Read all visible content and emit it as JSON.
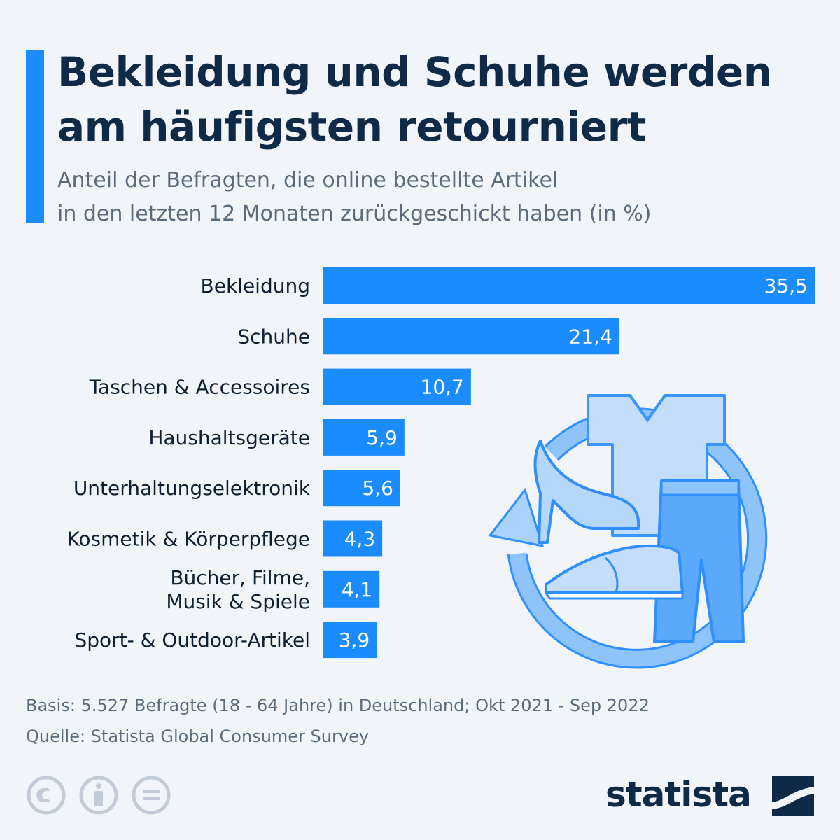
{
  "header": {
    "title_line1": "Bekleidung und Schuhe werden",
    "title_line2": "am häufigsten retourniert",
    "subtitle_line1": "Anteil der Befragten, die online bestellte Artikel",
    "subtitle_line2": "in den letzten 12 Monaten zurückgeschickt haben (in %)"
  },
  "chart_data": {
    "type": "bar",
    "orientation": "horizontal",
    "categories": [
      [
        "Bekleidung"
      ],
      [
        "Schuhe"
      ],
      [
        "Taschen & Accessoires"
      ],
      [
        "Haushaltsgeräte"
      ],
      [
        "Unterhaltungselektronik"
      ],
      [
        "Kosmetik & Körperpflege"
      ],
      [
        "Bücher, Filme,",
        "Musik & Spiele"
      ],
      [
        "Sport- & Outdoor-Artikel"
      ]
    ],
    "values": [
      35.5,
      21.4,
      10.7,
      5.9,
      5.6,
      4.3,
      4.1,
      3.9
    ],
    "value_labels": [
      "35,5",
      "21,4",
      "10,7",
      "5,9",
      "5,6",
      "4,3",
      "4,1",
      "3,9"
    ],
    "xlim": [
      0,
      35.5
    ],
    "grid": false,
    "bar_color": "#1a8cff"
  },
  "footer": {
    "basis": "Basis: 5.527 Befragte (18 - 64 Jahre) in Deutschland; Okt 2021 - Sep 2022",
    "source": "Quelle: Statista Global Consumer Survey"
  },
  "license_icons": [
    "cc-icon",
    "attribution-icon",
    "no-derivatives-icon"
  ],
  "brand": {
    "name": "statista"
  },
  "illustration": {
    "icons": [
      "return-arrow-icon",
      "t-shirt-icon",
      "trousers-icon",
      "high-heel-icon",
      "sneaker-icon"
    ]
  },
  "colors": {
    "accent": "#1a8cff",
    "title": "#0f2a47",
    "text": "#5b6b7b",
    "background": "#f1f5f9"
  }
}
